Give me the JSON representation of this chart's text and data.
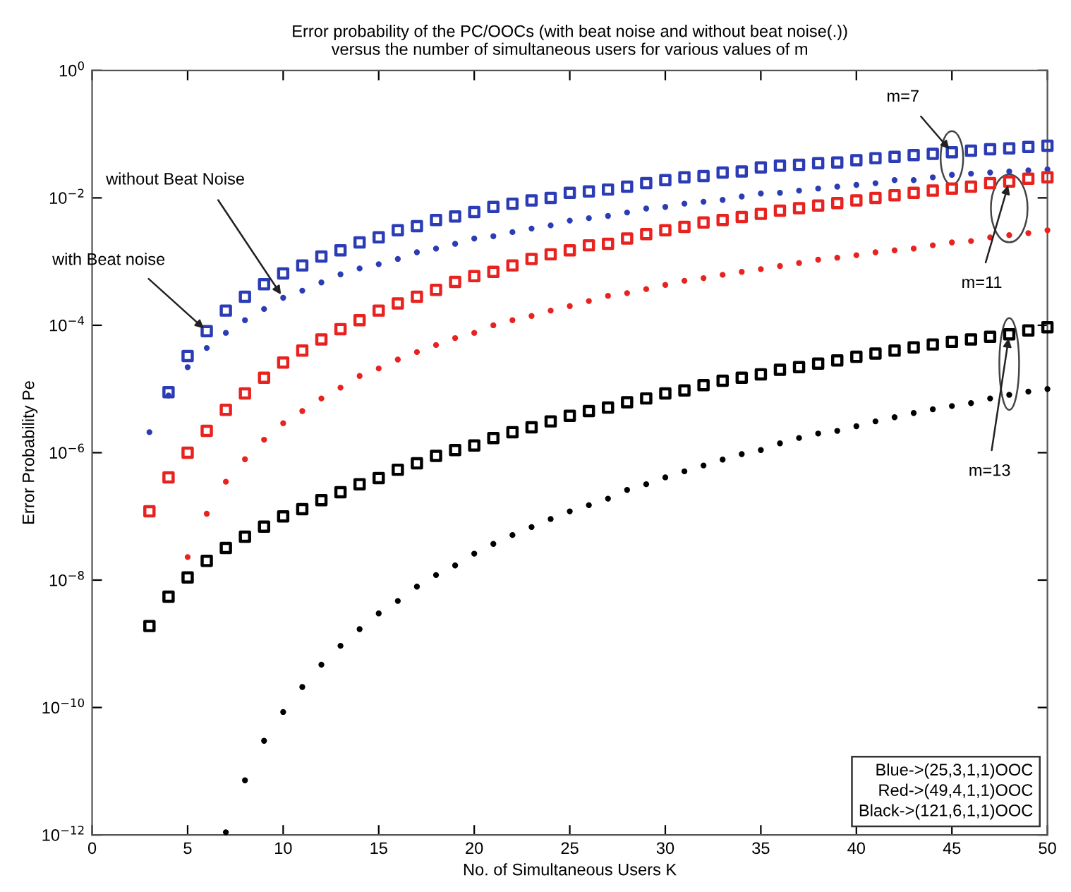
{
  "chart_data": {
    "type": "scatter",
    "title": "Error probability of the PC/OOCs (with beat noise and without beat noise(.))\nversus the number of simultaneous users for various values of m",
    "xlabel": "No. of Simultaneous Users K",
    "ylabel": "Error Probability Pe",
    "log": "y",
    "grid": false,
    "xlim": [
      0,
      50
    ],
    "xticks": [
      0,
      5,
      10,
      15,
      20,
      25,
      30,
      35,
      40,
      45,
      50
    ],
    "ylim": [
      1e-12,
      1
    ],
    "yticks": [
      {
        "value": 1e-12,
        "label": "10$^{−12}$"
      },
      {
        "value": 1e-10,
        "label": "10$^{−10}$"
      },
      {
        "value": 1e-08,
        "label": "10$^{−8}$"
      },
      {
        "value": 1e-06,
        "label": "10$^{−6}$"
      },
      {
        "value": 0.0001,
        "label": "10$^{−4}$"
      },
      {
        "value": 0.01,
        "label": "10$^{−2}$"
      },
      {
        "value": 1,
        "label": "10$^{0}$"
      }
    ],
    "series": [
      {
        "color": "#2b3cb4",
        "marker": "square",
        "x": [
          4,
          5,
          6,
          7,
          8,
          9,
          10,
          11,
          12,
          13,
          14,
          15,
          16,
          17,
          18,
          19,
          20,
          21,
          22,
          23,
          24,
          25,
          26,
          27,
          28,
          29,
          30,
          31,
          32,
          33,
          34,
          35,
          36,
          37,
          38,
          39,
          40,
          41,
          42,
          43,
          44,
          45,
          46,
          47,
          48,
          49,
          50
        ],
        "values": [
          8.9e-06,
          3.3e-05,
          8.1e-05,
          0.00017,
          0.00028,
          0.00044,
          0.00065,
          0.00087,
          0.0012,
          0.0015,
          0.002,
          0.0024,
          0.0031,
          0.0036,
          0.0045,
          0.0051,
          0.006,
          0.0072,
          0.0081,
          0.0091,
          0.01,
          0.012,
          0.0126,
          0.0135,
          0.015,
          0.017,
          0.019,
          0.021,
          0.022,
          0.025,
          0.026,
          0.03,
          0.032,
          0.033,
          0.035,
          0.036,
          0.039,
          0.042,
          0.044,
          0.047,
          0.049,
          0.052,
          0.055,
          0.058,
          0.06,
          0.063,
          0.066
        ]
      },
      {
        "color": "#2b3cb4",
        "marker": "circle",
        "x": [
          3,
          4,
          5,
          6,
          7,
          8,
          9,
          10,
          11,
          12,
          13,
          14,
          15,
          16,
          17,
          18,
          19,
          20,
          21,
          22,
          23,
          24,
          25,
          26,
          27,
          28,
          29,
          30,
          31,
          32,
          33,
          34,
          35,
          36,
          37,
          38,
          39,
          40,
          41,
          42,
          43,
          44,
          45,
          46,
          47,
          48,
          49,
          50
        ],
        "values": [
          2.1e-06,
          7.9e-06,
          2.2e-05,
          4.4e-05,
          7.6e-05,
          0.00012,
          0.00018,
          0.00027,
          0.00035,
          0.00047,
          0.00063,
          0.00078,
          0.00091,
          0.0011,
          0.0014,
          0.0016,
          0.0019,
          0.0023,
          0.0025,
          0.0029,
          0.0033,
          0.0037,
          0.0044,
          0.0048,
          0.0052,
          0.0059,
          0.0068,
          0.0072,
          0.0081,
          0.0087,
          0.0093,
          0.0105,
          0.0117,
          0.012,
          0.013,
          0.014,
          0.015,
          0.016,
          0.017,
          0.019,
          0.019,
          0.021,
          0.023,
          0.024,
          0.025,
          0.026,
          0.027,
          0.028
        ]
      },
      {
        "color": "#e8231f",
        "marker": "square",
        "x": [
          3,
          4,
          5,
          6,
          7,
          8,
          9,
          10,
          11,
          12,
          13,
          14,
          15,
          16,
          17,
          18,
          19,
          20,
          21,
          22,
          23,
          24,
          25,
          26,
          27,
          28,
          29,
          30,
          31,
          32,
          33,
          34,
          35,
          36,
          37,
          38,
          39,
          40,
          41,
          42,
          43,
          44,
          45,
          46,
          47,
          48,
          49,
          50
        ],
        "values": [
          1.2e-07,
          4.1e-07,
          1e-06,
          2.2e-06,
          4.7e-06,
          8.5e-06,
          1.5e-05,
          2.6e-05,
          4e-05,
          6e-05,
          8.7e-05,
          0.00012,
          0.00017,
          0.00022,
          0.00028,
          0.00036,
          0.00048,
          0.00059,
          0.00069,
          0.00087,
          0.0011,
          0.0013,
          0.0015,
          0.0018,
          0.0019,
          0.0023,
          0.0027,
          0.0031,
          0.0035,
          0.0041,
          0.0045,
          0.005,
          0.0056,
          0.0063,
          0.0069,
          0.0076,
          0.0083,
          0.0091,
          0.01,
          0.011,
          0.012,
          0.013,
          0.014,
          0.015,
          0.017,
          0.018,
          0.02,
          0.021
        ]
      },
      {
        "color": "#e8231f",
        "marker": "circle",
        "x": [
          5,
          6,
          7,
          8,
          9,
          10,
          11,
          12,
          13,
          14,
          15,
          16,
          17,
          18,
          19,
          20,
          21,
          22,
          23,
          24,
          25,
          26,
          27,
          28,
          29,
          30,
          31,
          32,
          33,
          34,
          35,
          36,
          37,
          38,
          39,
          40,
          41,
          42,
          43,
          44,
          45,
          46,
          47,
          48,
          49,
          50
        ],
        "values": [
          2.3e-08,
          1.1e-07,
          3.5e-07,
          7.9e-07,
          1.6e-06,
          2.9e-06,
          4.5e-06,
          7.1e-06,
          1.05e-05,
          1.6e-05,
          2.1e-05,
          2.9e-05,
          3.8e-05,
          4.9e-05,
          6.3e-05,
          7.6e-05,
          0.0001,
          0.00012,
          0.00014,
          0.00017,
          0.0002,
          0.00024,
          0.00029,
          0.00032,
          0.00037,
          0.00043,
          0.0005,
          0.00055,
          0.00062,
          0.00069,
          0.00076,
          0.00085,
          0.00095,
          0.00107,
          0.00115,
          0.00126,
          0.0014,
          0.0015,
          0.0016,
          0.0018,
          0.002,
          0.0021,
          0.0024,
          0.0026,
          0.0028,
          0.0031
        ]
      },
      {
        "color": "#000000",
        "marker": "square",
        "x": [
          3,
          4,
          5,
          6,
          7,
          8,
          9,
          10,
          11,
          12,
          13,
          14,
          15,
          16,
          17,
          18,
          19,
          20,
          21,
          22,
          23,
          24,
          25,
          26,
          27,
          28,
          29,
          30,
          31,
          32,
          33,
          34,
          35,
          36,
          37,
          38,
          39,
          40,
          41,
          42,
          43,
          44,
          45,
          46,
          47,
          48,
          49,
          50
        ],
        "values": [
          1.9e-09,
          5.5e-09,
          1.1e-08,
          2e-08,
          3.2e-08,
          4.8e-08,
          6.9e-08,
          1e-07,
          1.3e-07,
          1.8e-07,
          2.4e-07,
          3.2e-07,
          4e-07,
          5.4e-07,
          6.8e-07,
          8.9e-07,
          1.1e-06,
          1.3e-06,
          1.7e-06,
          2.1e-06,
          2.5e-06,
          3.1e-06,
          3.8e-06,
          4.5e-06,
          5.1e-06,
          6.2e-06,
          7.1e-06,
          8.5e-06,
          9.5e-06,
          1.15e-05,
          1.35e-05,
          1.5e-05,
          1.7e-05,
          2e-05,
          2.2e-05,
          2.5e-05,
          2.8e-05,
          3.2e-05,
          3.6e-05,
          4e-05,
          4.5e-05,
          5e-05,
          5.5e-05,
          6e-05,
          6.6e-05,
          7.2e-05,
          8.3e-05,
          9.3e-05
        ]
      },
      {
        "color": "#000000",
        "marker": "circle",
        "x": [
          7,
          8,
          9,
          10,
          11,
          12,
          13,
          14,
          15,
          16,
          17,
          18,
          19,
          20,
          21,
          22,
          23,
          24,
          25,
          26,
          27,
          28,
          29,
          30,
          31,
          32,
          33,
          34,
          35,
          36,
          37,
          38,
          39,
          40,
          41,
          42,
          43,
          44,
          45,
          46,
          47,
          48,
          49,
          50
        ],
        "values": [
          1.1e-12,
          7.2e-12,
          3e-11,
          8.5e-11,
          2.1e-10,
          4.7e-10,
          9.3e-10,
          1.7e-09,
          3e-09,
          4.7e-09,
          7.9e-09,
          1.2e-08,
          1.7e-08,
          2.6e-08,
          3.7e-08,
          5.1e-08,
          6.8e-08,
          9.1e-08,
          1.2e-07,
          1.5e-07,
          1.9e-07,
          2.6e-07,
          3.2e-07,
          4.1e-07,
          5.1e-07,
          6.3e-07,
          7.8e-07,
          9.5e-07,
          1.1e-06,
          1.4e-06,
          1.7e-06,
          2e-06,
          2.2e-06,
          2.6e-06,
          3.1e-06,
          3.6e-06,
          4.2e-06,
          4.8e-06,
          5.4e-06,
          6e-06,
          7.1e-06,
          8.1e-06,
          9.1e-06,
          1e-05
        ]
      }
    ],
    "annotations": [
      {
        "text": "with Beat noise",
        "x": 6,
        "y": 8.1e-05
      },
      {
        "text": "without Beat Noise",
        "x": 10,
        "y": 0.00027
      },
      {
        "text": "m=7",
        "x": 45,
        "y": 0.052
      },
      {
        "text": "m=11",
        "x": 48,
        "y": 0.018
      },
      {
        "text": "m=13",
        "x": 48,
        "y": 7.2e-05
      },
      "Blue->(25,3,1,1)OOC",
      "Red->(49,4,1,1)OOC",
      "Black->(121,6,1,1)OOC"
    ]
  }
}
